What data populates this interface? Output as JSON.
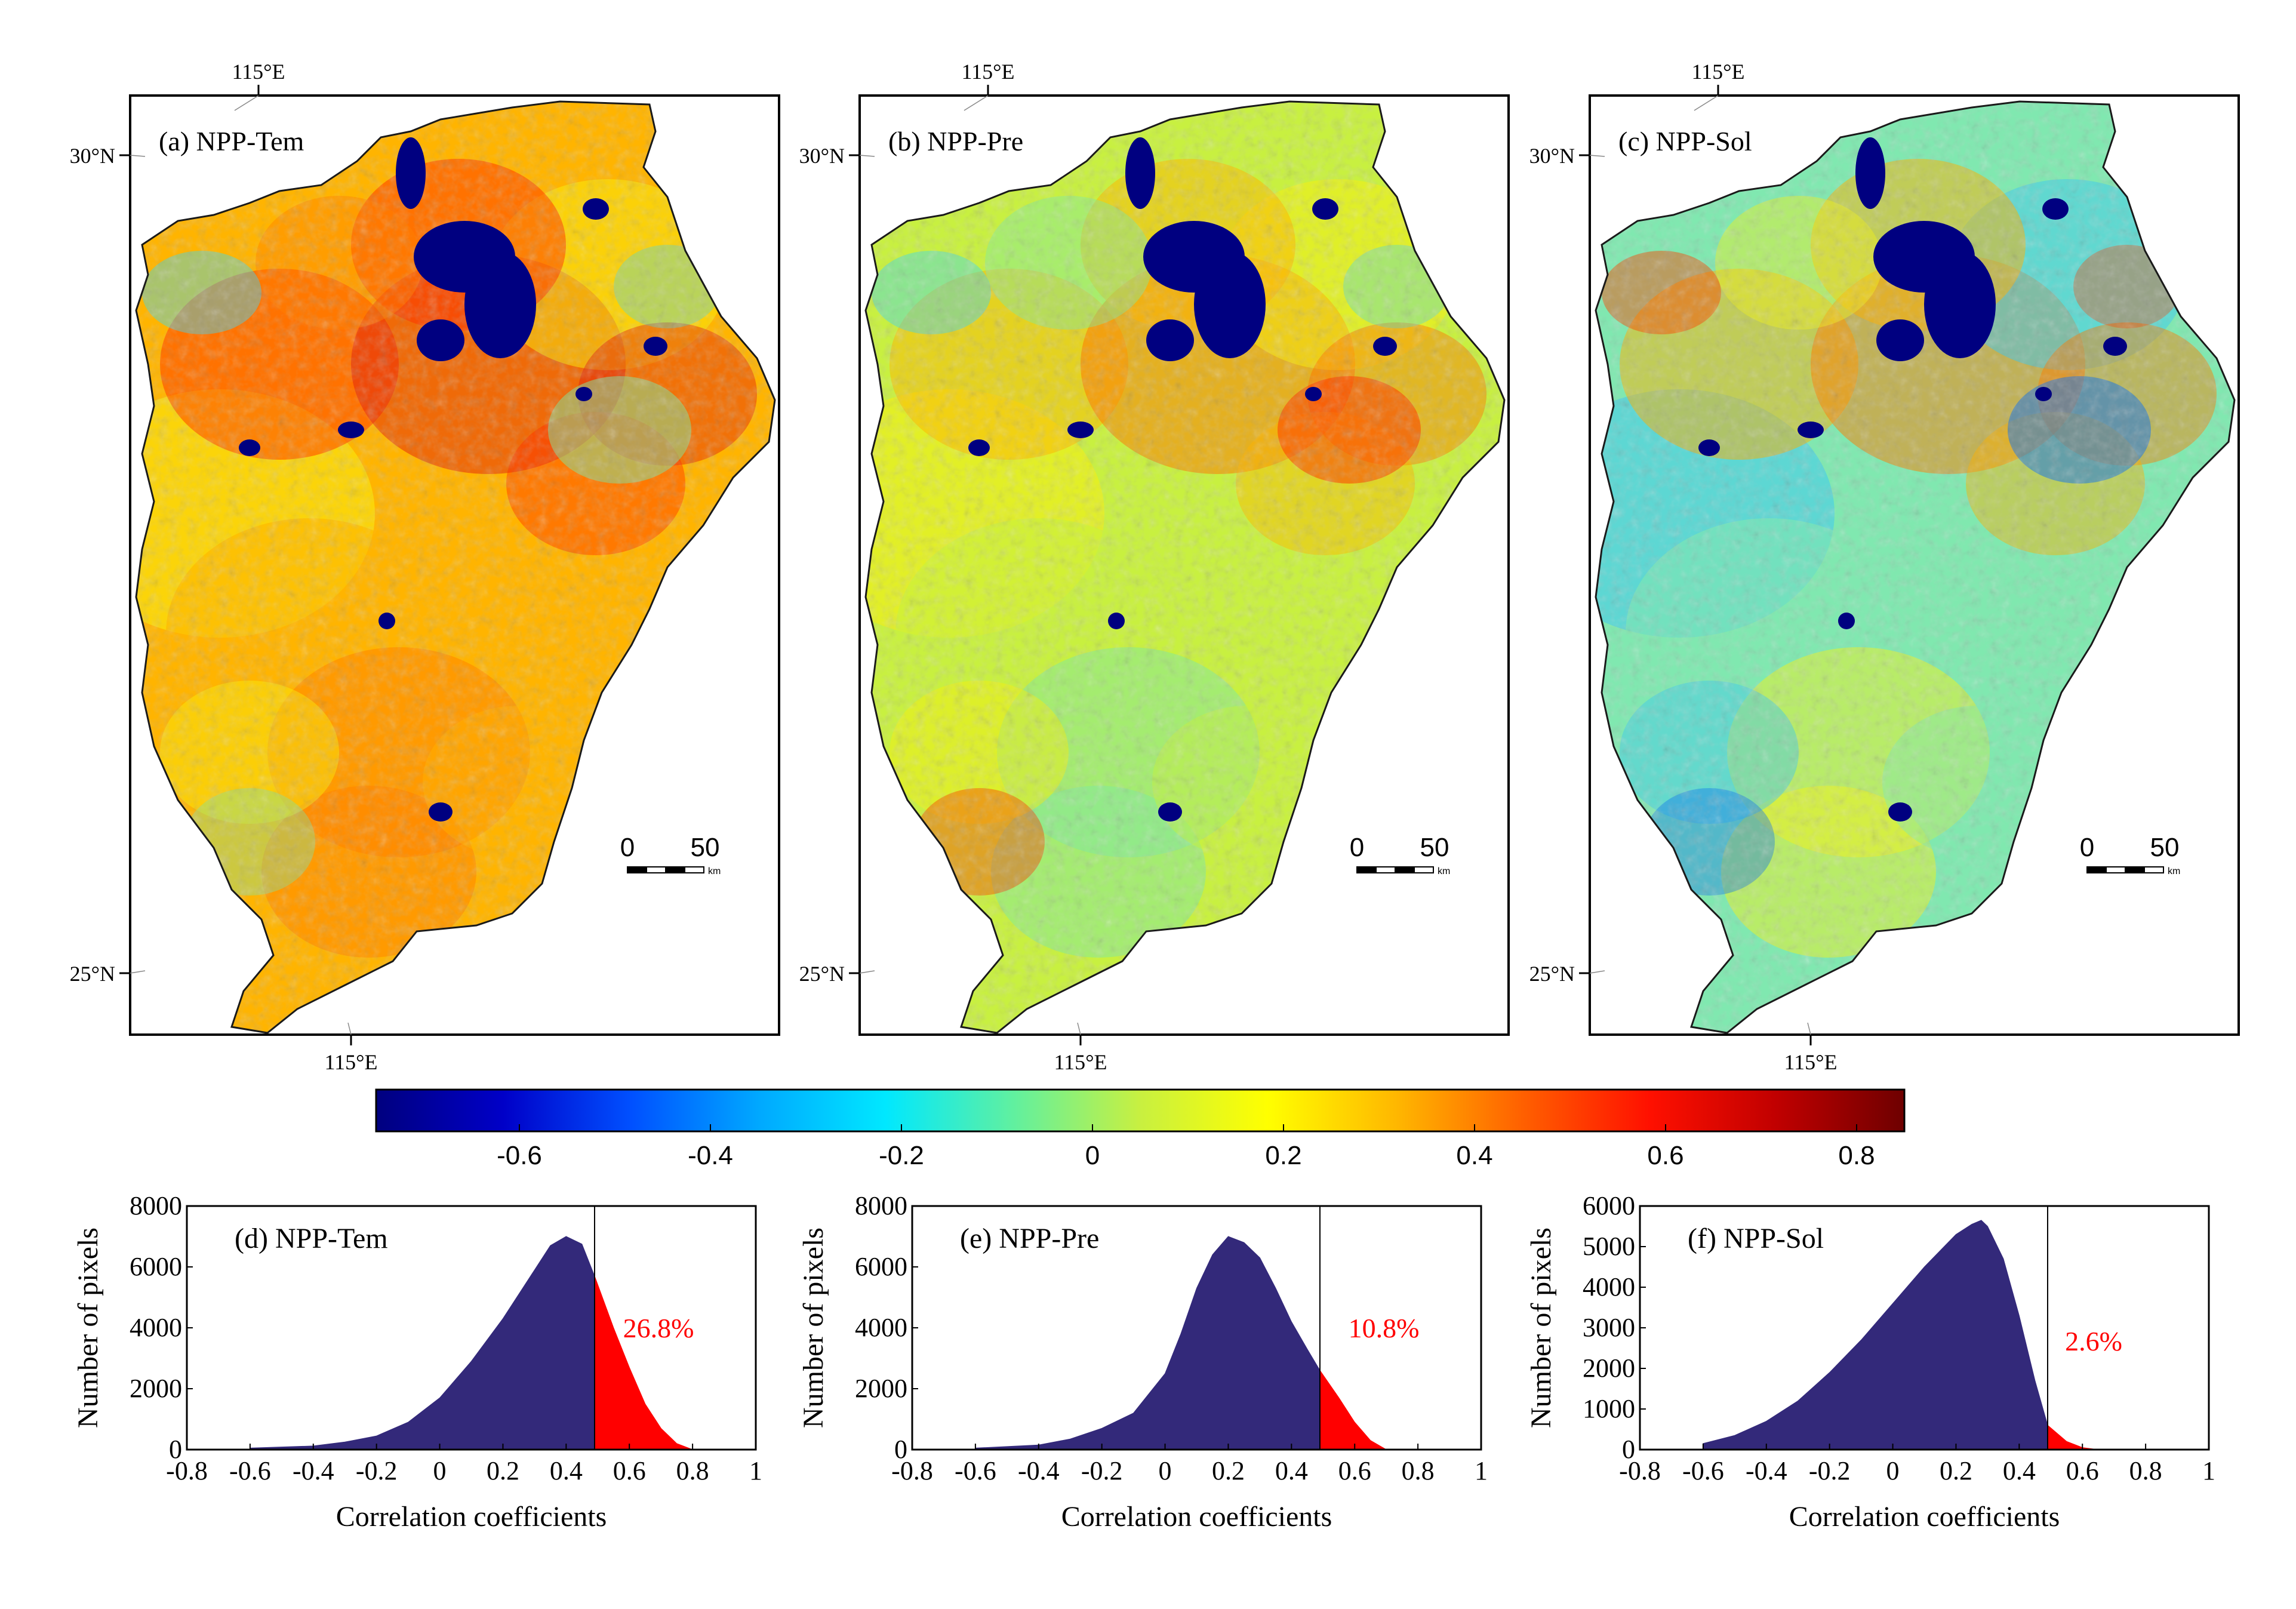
{
  "figure": {
    "colorbar": {
      "stops": [
        "#00007f",
        "#0000c8",
        "#0050ff",
        "#00a8ff",
        "#00e8ff",
        "#60f0a0",
        "#c8f040",
        "#ffff00",
        "#ffb800",
        "#ff6000",
        "#ff1000",
        "#c00000",
        "#6e0000"
      ],
      "min": -0.75,
      "max": 0.85,
      "ticks": [
        -0.6,
        -0.4,
        -0.2,
        0,
        0.2,
        0.4,
        0.6,
        0.8
      ],
      "tick_labels": [
        "-0.6",
        "-0.4",
        "-0.2",
        "0",
        "0.2",
        "0.4",
        "0.6",
        "0.8"
      ]
    },
    "maps": [
      {
        "id": "a",
        "label": "(a) NPP-Tem",
        "lon_label_top": "115°E",
        "lon_label_bottom": "115°E",
        "lat_label_top": "30°N",
        "lat_label_bottom": "25°N",
        "scale_0": "0",
        "scale_50": "50",
        "scale_unit": "km",
        "palette": [
          "#f7ee10",
          "#ffb400",
          "#ff8000",
          "#ff3000",
          "#e02010"
        ],
        "accent": [
          "#7fe7a0",
          "#40d8f0"
        ]
      },
      {
        "id": "b",
        "label": "(b) NPP-Pre",
        "lon_label_top": "115°E",
        "lon_label_bottom": "115°E",
        "lat_label_top": "30°N",
        "lat_label_bottom": "25°N",
        "scale_0": "0",
        "scale_50": "50",
        "scale_unit": "km",
        "palette": [
          "#f7ee10",
          "#c8f040",
          "#80e8a0",
          "#ffb400",
          "#ff7000"
        ],
        "accent": [
          "#ff3000",
          "#40d8f0"
        ]
      },
      {
        "id": "c",
        "label": "(c) NPP-Sol",
        "lon_label_top": "115°E",
        "lon_label_bottom": "115°E",
        "lat_label_top": "30°N",
        "lat_label_bottom": "25°N",
        "scale_0": "0",
        "scale_50": "50",
        "scale_unit": "km",
        "palette": [
          "#40c8f0",
          "#80e8b0",
          "#f0f020",
          "#ffb000",
          "#ff7a00"
        ],
        "accent": [
          "#1070f0",
          "#ff4000"
        ]
      }
    ],
    "water_color": "#000080"
  },
  "chart_data": [
    {
      "type": "bar",
      "title": "(d) NPP-Tem",
      "xlabel": "Correlation coefficients",
      "ylabel": "Number of pixels",
      "xlim": [
        -0.8,
        1
      ],
      "ylim": [
        0,
        8000
      ],
      "xticks": [
        -0.8,
        -0.6,
        -0.4,
        -0.2,
        0,
        0.2,
        0.4,
        0.6,
        0.8,
        1
      ],
      "xtick_labels": [
        "-0.8",
        "-0.6",
        "-0.4",
        "-0.2",
        "0",
        "0.2",
        "0.4",
        "0.6",
        "0.8",
        "1"
      ],
      "yticks": [
        0,
        2000,
        4000,
        6000,
        8000
      ],
      "ytick_labels": [
        "0",
        "2000",
        "4000",
        "6000",
        "8000"
      ],
      "threshold": 0.49,
      "annotation": "26.8%",
      "series": [
        {
          "name": "distribution",
          "x": [
            -0.6,
            -0.4,
            -0.3,
            -0.2,
            -0.1,
            0.0,
            0.1,
            0.2,
            0.3,
            0.35,
            0.4,
            0.45,
            0.49,
            0.55,
            0.6,
            0.65,
            0.7,
            0.75,
            0.8
          ],
          "values": [
            50,
            120,
            250,
            450,
            900,
            1700,
            2900,
            4300,
            5900,
            6700,
            7000,
            6750,
            5700,
            4000,
            2700,
            1500,
            700,
            200,
            0
          ]
        }
      ],
      "colors": {
        "below": "#33297a",
        "above": "#ff0000",
        "annotation": "#ff0000"
      }
    },
    {
      "type": "bar",
      "title": "(e) NPP-Pre",
      "xlabel": "Correlation coefficients",
      "ylabel": "Number of pixels",
      "xlim": [
        -0.8,
        1
      ],
      "ylim": [
        0,
        8000
      ],
      "xticks": [
        -0.8,
        -0.6,
        -0.4,
        -0.2,
        0,
        0.2,
        0.4,
        0.6,
        0.8,
        1
      ],
      "xtick_labels": [
        "-0.8",
        "-0.6",
        "-0.4",
        "-0.2",
        "0",
        "0.2",
        "0.4",
        "0.6",
        "0.8",
        "1"
      ],
      "yticks": [
        0,
        2000,
        4000,
        6000,
        8000
      ],
      "ytick_labels": [
        "0",
        "2000",
        "4000",
        "6000",
        "8000"
      ],
      "threshold": 0.49,
      "annotation": "10.8%",
      "series": [
        {
          "name": "distribution",
          "x": [
            -0.6,
            -0.4,
            -0.3,
            -0.2,
            -0.1,
            0.0,
            0.05,
            0.1,
            0.15,
            0.2,
            0.25,
            0.3,
            0.35,
            0.4,
            0.45,
            0.49,
            0.55,
            0.6,
            0.65,
            0.7
          ],
          "values": [
            50,
            150,
            350,
            700,
            1200,
            2500,
            3800,
            5300,
            6400,
            7000,
            6800,
            6300,
            5300,
            4200,
            3300,
            2600,
            1700,
            900,
            300,
            0
          ]
        }
      ],
      "colors": {
        "below": "#33297a",
        "above": "#ff0000",
        "annotation": "#ff0000"
      }
    },
    {
      "type": "bar",
      "title": "(f) NPP-Sol",
      "xlabel": "Correlation coefficients",
      "ylabel": "Number of pixels",
      "xlim": [
        -0.8,
        1
      ],
      "ylim": [
        0,
        6000
      ],
      "xticks": [
        -0.8,
        -0.6,
        -0.4,
        -0.2,
        0,
        0.2,
        0.4,
        0.6,
        0.8,
        1
      ],
      "xtick_labels": [
        "-0.8",
        "-0.6",
        "-0.4",
        "-0.2",
        "0",
        "0.2",
        "0.4",
        "0.6",
        "0.8",
        "1"
      ],
      "yticks": [
        0,
        1000,
        2000,
        3000,
        4000,
        5000,
        6000
      ],
      "ytick_labels": [
        "0",
        "1000",
        "2000",
        "3000",
        "4000",
        "5000",
        "6000"
      ],
      "threshold": 0.49,
      "annotation": "2.6%",
      "series": [
        {
          "name": "distribution",
          "x": [
            -0.6,
            -0.5,
            -0.4,
            -0.3,
            -0.2,
            -0.1,
            0.0,
            0.1,
            0.2,
            0.25,
            0.28,
            0.3,
            0.35,
            0.4,
            0.45,
            0.49,
            0.55,
            0.6,
            0.65
          ],
          "values": [
            150,
            350,
            700,
            1200,
            1900,
            2700,
            3600,
            4500,
            5300,
            5550,
            5650,
            5500,
            4700,
            3300,
            1700,
            600,
            200,
            50,
            0
          ]
        }
      ],
      "colors": {
        "below": "#33297a",
        "above": "#ff0000",
        "annotation": "#ff0000"
      }
    }
  ]
}
